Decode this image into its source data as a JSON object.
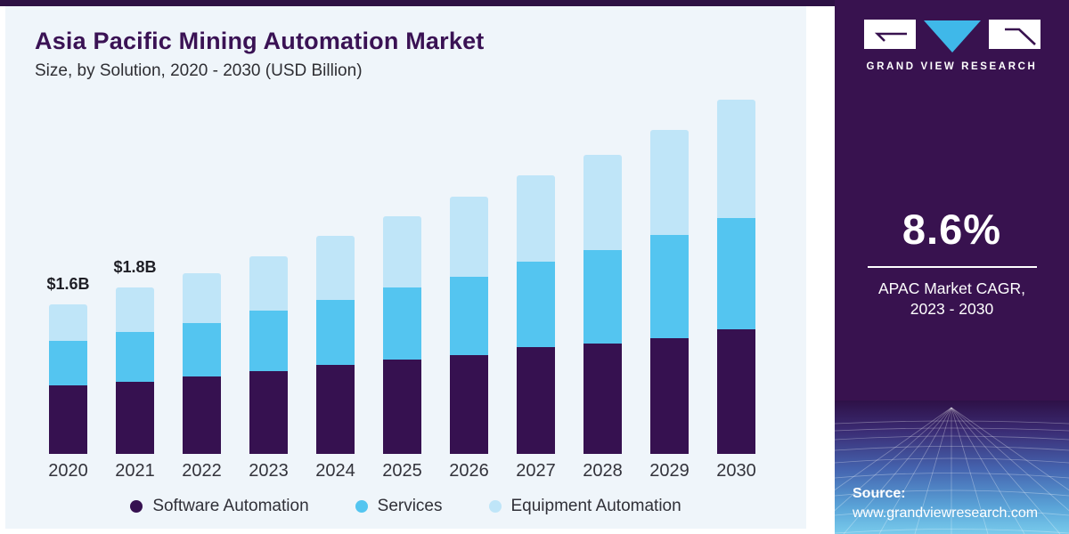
{
  "header": {
    "title": "Asia Pacific Mining Automation Market",
    "subtitle": "Size, by Solution, 2020 - 2030 (USD Billion)"
  },
  "sidebar": {
    "brand_name": "GRAND VIEW RESEARCH",
    "stat_value": "8.6%",
    "stat_label_line1": "APAC Market CAGR,",
    "stat_label_line2": "2023 - 2030",
    "source_label": "Source:",
    "source_url": "www.grandviewresearch.com"
  },
  "colors": {
    "software": "#361150",
    "services": "#54c5f0",
    "equipment": "#bfe5f8",
    "sidebar_purple": "#38124f",
    "logo_triangle_blue": "#3fb8e9",
    "panel_background": "#eff5fa",
    "title_purple": "#3a1254"
  },
  "chart_data": {
    "type": "bar",
    "stacked": true,
    "title": "Asia Pacific Mining Automation Market Size, by Solution, 2020 - 2030 (USD Billion)",
    "unit": "USD Billion",
    "categories": [
      "2020",
      "2021",
      "2022",
      "2023",
      "2024",
      "2025",
      "2026",
      "2027",
      "2028",
      "2029",
      "2030"
    ],
    "series": [
      {
        "name": "Software Automation",
        "color": "#361150",
        "values": [
          0.73,
          0.77,
          0.83,
          0.89,
          0.95,
          1.01,
          1.06,
          1.14,
          1.18,
          1.24,
          1.33
        ]
      },
      {
        "name": "Services",
        "color": "#54c5f0",
        "values": [
          0.48,
          0.53,
          0.57,
          0.64,
          0.7,
          0.77,
          0.84,
          0.92,
          1.0,
          1.1,
          1.19
        ]
      },
      {
        "name": "Equipment Automation",
        "color": "#bfe5f8",
        "values": [
          0.39,
          0.48,
          0.53,
          0.58,
          0.68,
          0.76,
          0.85,
          0.92,
          1.02,
          1.13,
          1.27
        ]
      }
    ],
    "totals": [
      1.6,
      1.78,
      1.93,
      2.11,
      2.33,
      2.54,
      2.75,
      2.98,
      3.2,
      3.47,
      3.79
    ],
    "annotations": [
      {
        "category": "2020",
        "text": "$1.6B"
      },
      {
        "category": "2021",
        "text": "$1.8B"
      }
    ],
    "ylim": [
      0,
      3.9
    ],
    "grid": false,
    "legend_position": "bottom"
  }
}
